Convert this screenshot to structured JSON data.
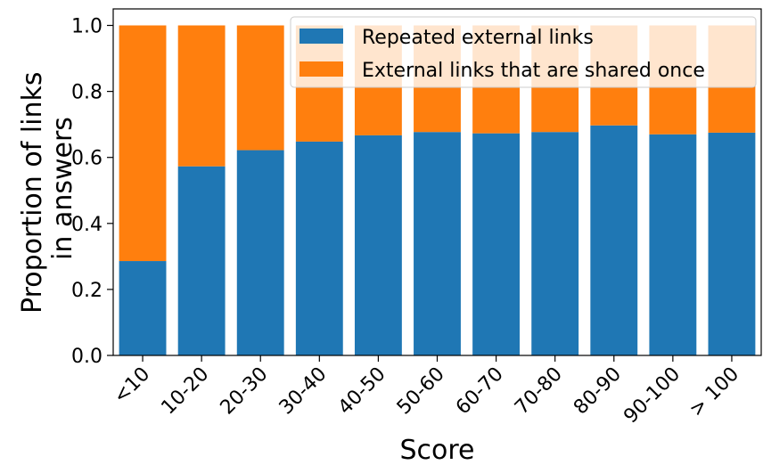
{
  "chart_data": {
    "type": "bar",
    "stacked": true,
    "title": "",
    "xlabel": "Score",
    "ylabel_lines": [
      "Proportion of links",
      "in answers"
    ],
    "categories": [
      "<10",
      "10-20",
      "20-30",
      "30-40",
      "40-50",
      "50-60",
      "60-70",
      "70-80",
      "80-90",
      "90-100",
      "> 100"
    ],
    "series": [
      {
        "name": "Repeated external links",
        "color": "#1f77b4",
        "values": [
          0.286,
          0.573,
          0.622,
          0.648,
          0.667,
          0.677,
          0.673,
          0.677,
          0.697,
          0.67,
          0.675
        ]
      },
      {
        "name": "External links that are shared once",
        "color": "#ff7f0e",
        "values": [
          0.714,
          0.427,
          0.378,
          0.352,
          0.333,
          0.323,
          0.327,
          0.323,
          0.303,
          0.33,
          0.325
        ]
      }
    ],
    "ylim": [
      0,
      1.05
    ],
    "yticks": [
      "0.0",
      "0.2",
      "0.4",
      "0.6",
      "0.8",
      "1.0"
    ],
    "ytick_values": [
      0,
      0.2,
      0.4,
      0.6,
      0.8,
      1.0
    ],
    "xtick_rotation_deg": -45,
    "grid": false,
    "legend_position": "top-right"
  }
}
